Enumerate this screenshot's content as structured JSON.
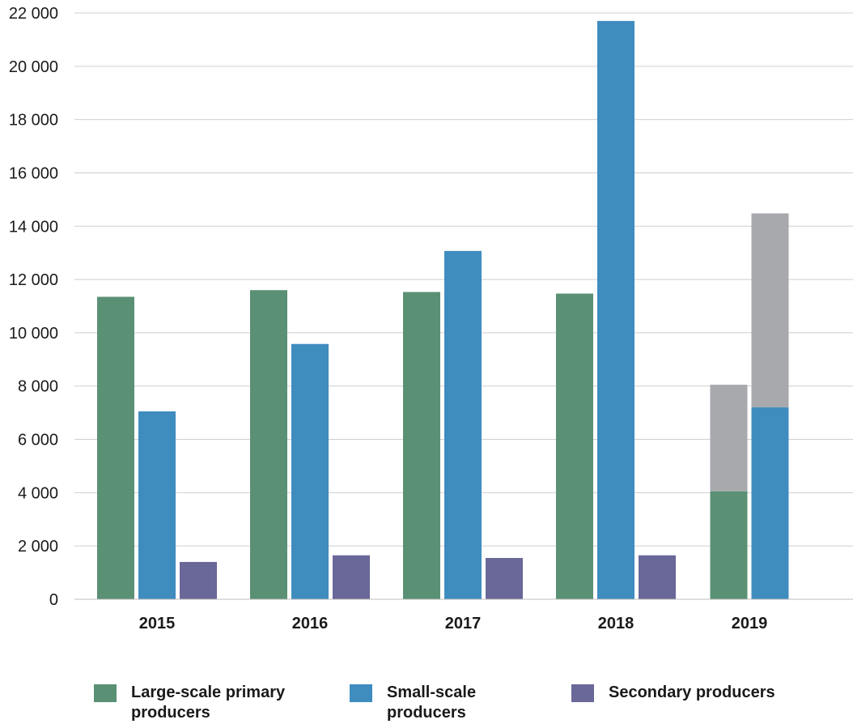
{
  "chart_data": {
    "type": "bar",
    "categories": [
      "2015",
      "2016",
      "2017",
      "2018",
      "2019"
    ],
    "ylim": [
      0,
      22000
    ],
    "yticks": [
      0,
      2000,
      4000,
      6000,
      8000,
      10000,
      12000,
      14000,
      16000,
      18000,
      20000,
      22000
    ],
    "ytick_labels": [
      "0",
      "2 000",
      "4 000",
      "6 000",
      "8 000",
      "10 000",
      "12 000",
      "14 000",
      "16 000",
      "18 000",
      "20 000",
      "22 000"
    ],
    "grid": true,
    "legend_position": "bottom",
    "series": [
      {
        "name": "Large-scale primary producers",
        "color": "#5a9074",
        "values": [
          11350,
          11600,
          11530,
          11470,
          4050
        ],
        "stacked_extension_2019": {
          "top": 8050,
          "color": "#a8a9ad"
        }
      },
      {
        "name": "Small-scale producers",
        "color": "#3f8cbf",
        "values": [
          7050,
          9580,
          13070,
          21700,
          7200
        ],
        "stacked_extension_2019": {
          "top": 14480,
          "color": "#a8a9ad"
        }
      },
      {
        "name": "Secondary producers",
        "color": "#6a6799",
        "values": [
          1400,
          1650,
          1550,
          1650,
          null
        ]
      }
    ]
  },
  "legend": {
    "items": [
      {
        "label": "Large-scale primary producers",
        "color": "#5a9074"
      },
      {
        "label": "Small-scale producers",
        "color": "#3f8cbf"
      },
      {
        "label": "Secondary producers",
        "color": "#6a6799"
      }
    ]
  }
}
